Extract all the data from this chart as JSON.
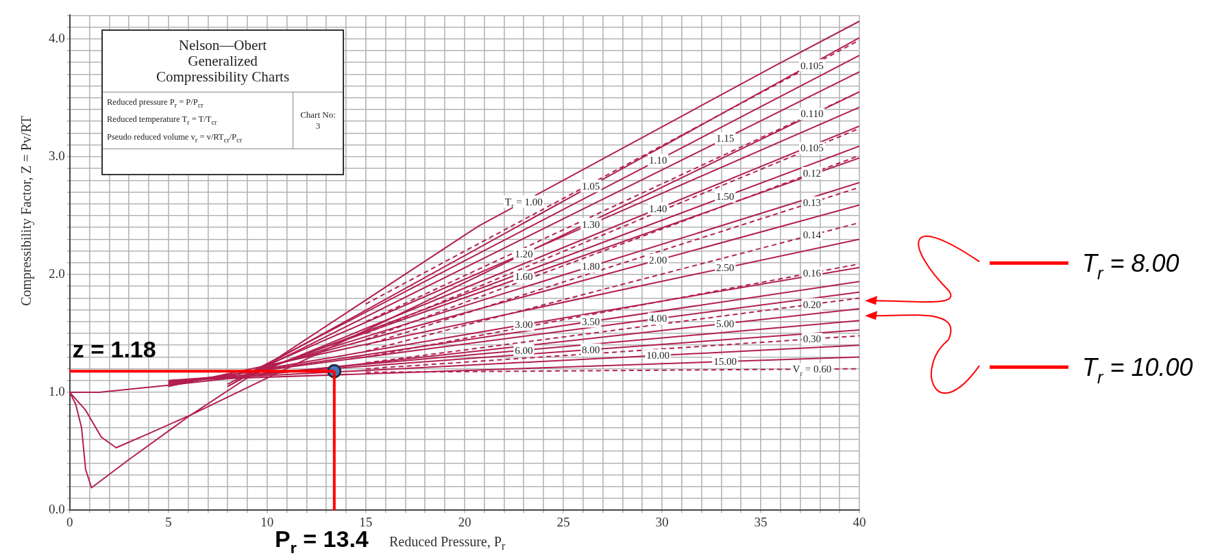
{
  "chart_data": {
    "type": "line",
    "title": "Nelson—Obert\nGeneralized\nCompressibility Charts",
    "xlabel": "Reduced Pressure, P$_{r}$",
    "ylabel": "Compressibility Factor, Z = Pv/RT",
    "xlim": [
      0,
      40
    ],
    "ylim": [
      0,
      4.2
    ],
    "xticks": [
      0,
      {
        "value": 1,
        "label": null
      },
      {
        "value": 2,
        "label": null
      },
      {
        "value": 3,
        "label": null
      },
      {
        "value": 4,
        "label": null
      },
      5,
      {
        "value": 6,
        "label": null
      },
      {
        "value": 7,
        "label": null
      },
      {
        "value": 8,
        "label": null
      },
      {
        "value": 9,
        "label": null
      },
      10,
      {
        "value": 11,
        "label": null
      },
      {
        "value": 12,
        "label": null
      },
      {
        "value": 13,
        "label": null
      },
      {
        "value": 14,
        "label": null
      },
      15,
      {
        "value": 16,
        "label": null
      },
      {
        "value": 17,
        "label": null
      },
      {
        "value": 18,
        "label": null
      },
      {
        "value": 19,
        "label": null
      },
      20,
      {
        "value": 21,
        "label": null
      },
      {
        "value": 22,
        "label": null
      },
      {
        "value": 23,
        "label": null
      },
      {
        "value": 24,
        "label": null
      },
      25,
      {
        "value": 26,
        "label": null
      },
      {
        "value": 27,
        "label": null
      },
      {
        "value": 28,
        "label": null
      },
      {
        "value": 29,
        "label": null
      },
      30,
      {
        "value": 31,
        "label": null
      },
      {
        "value": 32,
        "label": null
      },
      {
        "value": 33,
        "label": null
      },
      {
        "value": 34,
        "label": null
      },
      35,
      {
        "value": 36,
        "label": null
      },
      {
        "value": 37,
        "label": null
      },
      {
        "value": 38,
        "label": null
      },
      {
        "value": 39,
        "label": null
      },
      40
    ],
    "yticks": [
      {
        "value": 0,
        "label": "0.0"
      },
      {
        "value": 0.1,
        "label": null
      },
      {
        "value": 0.2,
        "label": null
      },
      {
        "value": 0.3,
        "label": null
      },
      {
        "value": 0.4,
        "label": null
      },
      {
        "value": 0.5,
        "label": null
      },
      {
        "value": 0.6,
        "label": null
      },
      {
        "value": 0.7,
        "label": null
      },
      {
        "value": 0.8,
        "label": null
      },
      {
        "value": 0.9,
        "label": null
      },
      {
        "value": 1,
        "label": "1.0"
      },
      {
        "value": 1.1,
        "label": null
      },
      {
        "value": 1.2,
        "label": null
      },
      {
        "value": 1.3,
        "label": null
      },
      {
        "value": 1.4,
        "label": null
      },
      {
        "value": 1.5,
        "label": null
      },
      {
        "value": 1.6,
        "label": null
      },
      {
        "value": 1.7,
        "label": null
      },
      {
        "value": 1.8,
        "label": null
      },
      {
        "value": 1.9,
        "label": null
      },
      {
        "value": 2,
        "label": "2.0"
      },
      {
        "value": 2.1,
        "label": null
      },
      {
        "value": 2.2,
        "label": null
      },
      {
        "value": 2.3,
        "label": null
      },
      {
        "value": 2.4,
        "label": null
      },
      {
        "value": 2.5,
        "label": null
      },
      {
        "value": 2.6,
        "label": null
      },
      {
        "value": 2.7,
        "label": null
      },
      {
        "value": 2.8,
        "label": null
      },
      {
        "value": 2.9,
        "label": null
      },
      {
        "value": 3,
        "label": "3.0"
      },
      {
        "value": 3.1,
        "label": null
      },
      {
        "value": 3.2,
        "label": null
      },
      {
        "value": 3.3,
        "label": null
      },
      {
        "value": 3.4,
        "label": null
      },
      {
        "value": 3.5,
        "label": null
      },
      {
        "value": 3.6,
        "label": null
      },
      {
        "value": 3.7,
        "label": null
      },
      {
        "value": 3.8,
        "label": null
      },
      {
        "value": 3.9,
        "label": null
      },
      {
        "value": 4,
        "label": "4.0"
      },
      {
        "value": 4.1,
        "label": null
      },
      {
        "value": 4.2,
        "label": null
      }
    ],
    "grid": true,
    "legend": false,
    "marker": "none",
    "line_style": "solid",
    "series": [
      {
        "name": "T$_{r}$ = 1.00",
        "color": "#b21f4f",
        "x": [
          0,
          0.3,
          0.6,
          0.8,
          1.1,
          3,
          6.15,
          9.15,
          20.7,
          35.7,
          40
        ],
        "values": [
          1,
          0.9,
          0.7,
          0.35,
          0.19,
          0.43,
          0.81,
          1.14,
          2.41,
          3.77,
          4.15
        ]
      },
      {
        "name": "1.05",
        "color": "#b21f4f",
        "x": [
          8,
          40
        ],
        "values": [
          1.05,
          4.01
        ]
      },
      {
        "name": "1.10",
        "color": "#b21f4f",
        "x": [
          8,
          40
        ],
        "values": [
          1.07,
          3.86
        ]
      },
      {
        "name": "1.15",
        "color": "#b21f4f",
        "x": [
          8.5,
          40
        ],
        "values": [
          1.1,
          3.72
        ]
      },
      {
        "name": "1.20",
        "color": "#b21f4f",
        "x": [
          0,
          0.8,
          1.6,
          2.35,
          4,
          6.15,
          40
        ],
        "values": [
          1,
          0.85,
          0.62,
          0.53,
          0.65,
          0.81,
          3.55
        ]
      },
      {
        "name": "1.30",
        "color": "#b21f4f",
        "x": [
          8.5,
          40
        ],
        "values": [
          1.12,
          3.42
        ]
      },
      {
        "name": "1.40",
        "color": "#b21f4f",
        "x": [
          9,
          40
        ],
        "values": [
          1.13,
          3.26
        ]
      },
      {
        "name": "1.50",
        "color": "#b21f4f",
        "x": [
          9,
          40
        ],
        "values": [
          1.14,
          3.09
        ]
      },
      {
        "name": "1.60",
        "color": "#b21f4f",
        "x": [
          9,
          40
        ],
        "values": [
          1.15,
          2.99
        ]
      },
      {
        "name": "1.80",
        "color": "#b21f4f",
        "x": [
          9,
          40
        ],
        "values": [
          1.16,
          2.78
        ]
      },
      {
        "name": "2.00",
        "color": "#b21f4f",
        "x": [
          9,
          40
        ],
        "values": [
          1.17,
          2.59
        ]
      },
      {
        "name": "2.50",
        "color": "#b21f4f",
        "x": [
          5,
          40
        ],
        "values": [
          1.05,
          2.3
        ]
      },
      {
        "name": "3.00",
        "color": "#b21f4f",
        "x": [
          5,
          40
        ],
        "values": [
          1.06,
          2.06
        ]
      },
      {
        "name": "3.50",
        "color": "#b21f4f",
        "x": [
          5,
          40
        ],
        "values": [
          1.07,
          1.94
        ]
      },
      {
        "name": "4.00",
        "color": "#b21f4f",
        "x": [
          5,
          40
        ],
        "values": [
          1.08,
          1.85
        ]
      },
      {
        "name": "5.00",
        "color": "#b21f4f",
        "x": [
          0,
          1.5,
          5,
          40
        ],
        "values": [
          1,
          1,
          1.06,
          1.71
        ]
      },
      {
        "name": "6.00",
        "color": "#b21f4f",
        "x": [
          5,
          40
        ],
        "values": [
          1.09,
          1.61
        ]
      },
      {
        "name": "8.00",
        "color": "#b21f4f",
        "x": [
          5,
          40
        ],
        "values": [
          1.1,
          1.53
        ]
      },
      {
        "name": "10.00",
        "color": "#b21f4f",
        "x": [
          5,
          40
        ],
        "values": [
          1.1,
          1.4
        ]
      },
      {
        "name": "15.00",
        "color": "#b21f4f",
        "x": [
          5,
          40
        ],
        "values": [
          1.1,
          1.3
        ]
      },
      {
        "name": "0.105",
        "color": "#b21f4f",
        "line_style": "dashed",
        "x": [
          15,
          40
        ],
        "values": [
          1.75,
          3.99
        ]
      },
      {
        "name": "0.110",
        "color": "#b21f4f",
        "line_style": "dashed",
        "x": [
          15,
          40
        ],
        "values": [
          1.6,
          3.55
        ]
      },
      {
        "name": "0.105",
        "color": "#b21f4f",
        "line_style": "dashed",
        "x": [
          15,
          40
        ],
        "values": [
          1.5,
          3.24
        ]
      },
      {
        "name": "0.12",
        "color": "#b21f4f",
        "line_style": "dashed",
        "x": [
          15,
          40
        ],
        "values": [
          1.45,
          3.01
        ]
      },
      {
        "name": "0.13",
        "color": "#b21f4f",
        "line_style": "dashed",
        "x": [
          15,
          40
        ],
        "values": [
          1.4,
          2.74
        ]
      },
      {
        "name": "0.14",
        "color": "#b21f4f",
        "line_style": "dashed",
        "x": [
          15,
          40
        ],
        "values": [
          1.35,
          2.44
        ]
      },
      {
        "name": "0.16",
        "color": "#b21f4f",
        "line_style": "dashed",
        "x": [
          15,
          40
        ],
        "values": [
          1.3,
          2.09
        ]
      },
      {
        "name": "0.20",
        "color": "#b21f4f",
        "line_style": "dashed",
        "x": [
          15,
          40
        ],
        "values": [
          1.25,
          1.8
        ]
      },
      {
        "name": "0.30",
        "color": "#b21f4f",
        "line_style": "dashed",
        "x": [
          15,
          40
        ],
        "values": [
          1.2,
          1.48
        ]
      },
      {
        "name": "V$_{r}$ = 0.60",
        "color": "#b21f4f",
        "line_style": "dashed",
        "x": [
          15,
          40
        ],
        "values": [
          1.17,
          1.2
        ]
      },
      {
        "type": "scatter",
        "color": "#4a78b8",
        "marker": "circle",
        "x": [
          13.4
        ],
        "values": [
          1.18
        ]
      }
    ],
    "ref_lines": [
      {
        "axis": "y",
        "value": 1.18,
        "label": "z = 1.18",
        "color": "#ff0000"
      },
      {
        "axis": "x",
        "value": 13.4,
        "label": "P$_{r}$ = 13.4",
        "color": "#ff0000"
      }
    ],
    "annotations": [
      "Reduced pressure P$_{r}$ = P/P$_{cr}$",
      "Reduced temperature T$_{r}$ = T/T$_{cr}$",
      "Pseudo reduced volume v$_{r}$ = v/RT$_{cr}$/P$_{cr}$",
      "Chart No: 3",
      "T$_{r}$ = 8.00",
      "T$_{r}$ = 10.00"
    ]
  }
}
